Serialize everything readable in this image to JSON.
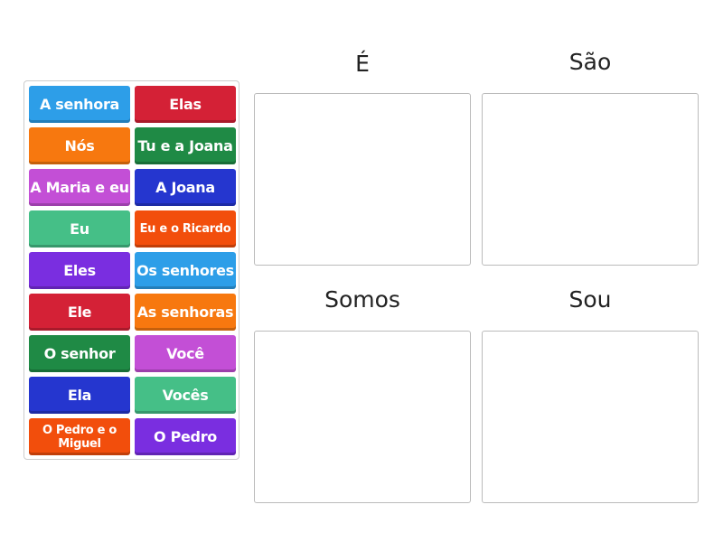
{
  "tiles": [
    {
      "label": "A senhora",
      "color": "#2d9ee8"
    },
    {
      "label": "Elas",
      "color": "#d42136"
    },
    {
      "label": "Nós",
      "color": "#f7780f"
    },
    {
      "label": "Tu e a Joana",
      "color": "#1f8a45"
    },
    {
      "label": "A Maria e eu",
      "color": "#c34fd6"
    },
    {
      "label": "A Joana",
      "color": "#2536cf"
    },
    {
      "label": "Eu",
      "color": "#45bf87"
    },
    {
      "label": "Eu e o Ricardo",
      "color": "#f24e0c"
    },
    {
      "label": "Eles",
      "color": "#7a2ee0"
    },
    {
      "label": "Os senhores",
      "color": "#2d9ee8"
    },
    {
      "label": "Ele",
      "color": "#d42136"
    },
    {
      "label": "As senhoras",
      "color": "#f7780f"
    },
    {
      "label": "O senhor",
      "color": "#1f8a45"
    },
    {
      "label": "Você",
      "color": "#c34fd6"
    },
    {
      "label": "Ela",
      "color": "#2536cf"
    },
    {
      "label": "Vocês",
      "color": "#45bf87"
    },
    {
      "label": "O Pedro e o Miguel",
      "color": "#f24e0c"
    },
    {
      "label": "O Pedro",
      "color": "#7a2ee0"
    }
  ],
  "buckets": [
    {
      "title": "É"
    },
    {
      "title": "São"
    },
    {
      "title": "Somos"
    },
    {
      "title": "Sou"
    }
  ]
}
